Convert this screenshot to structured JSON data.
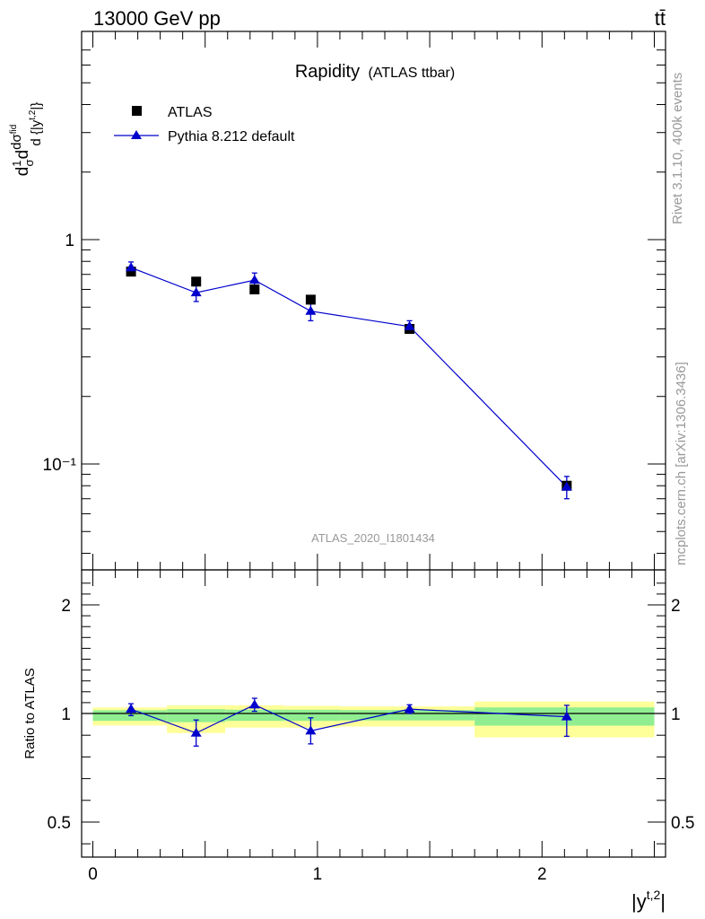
{
  "header": {
    "energy_label": "13000 GeV pp",
    "process_label": "tt̄"
  },
  "side_labels": {
    "rivet": "Rivet 3.1.10,  400k events",
    "mcplots": "mcplots.cern.ch [arXiv:1306.3436]"
  },
  "chart_data": [
    {
      "type": "scatter",
      "title": "Rapidity",
      "subtitle": "(ATLAS ttbar)",
      "watermark": "ATLAS_2020_I1801434",
      "ylabel": "d(1/σ)dσ^{fid}/d{|y^{t,2}|}",
      "xlabel": "|y^{t,2}|",
      "yscale": "log",
      "xlim": [
        -0.05,
        2.55
      ],
      "ylim": [
        0.033,
        7.5
      ],
      "y_tick_labels": [
        "10⁻¹",
        "1"
      ],
      "x_tick_labels": [
        "0",
        "1",
        "2"
      ],
      "legend": {
        "placement": "top-left",
        "entries": [
          "ATLAS",
          "Pythia 8.212 default"
        ]
      },
      "series": [
        {
          "name": "ATLAS",
          "marker": "square",
          "color": "#000000",
          "x": [
            0.17,
            0.46,
            0.72,
            0.97,
            1.41,
            2.11
          ],
          "y": [
            0.72,
            0.65,
            0.6,
            0.54,
            0.4,
            0.08
          ]
        },
        {
          "name": "Pythia 8.212 default",
          "marker": "triangle",
          "color": "#0000cc",
          "x": [
            0.17,
            0.46,
            0.72,
            0.97,
            1.41,
            2.11
          ],
          "y": [
            0.75,
            0.58,
            0.66,
            0.48,
            0.41,
            0.079
          ],
          "err_low": [
            0.045,
            0.05,
            0.05,
            0.045,
            0.025,
            0.009
          ],
          "err_high": [
            0.045,
            0.05,
            0.05,
            0.045,
            0.025,
            0.009
          ]
        }
      ]
    },
    {
      "type": "scatter",
      "ylabel": "Ratio to ATLAS",
      "xlabel": "|y^{t,2}|",
      "xlim": [
        -0.05,
        2.55
      ],
      "ylim": [
        0.35,
        2.3
      ],
      "y_tick_labels": [
        "0.5",
        "1",
        "2"
      ],
      "x_tick_labels": [
        "0",
        "1",
        "2"
      ],
      "reference_line": 1.0,
      "bands": [
        {
          "x0": 0.0,
          "x1": 0.33,
          "inner_lo": 0.966,
          "inner_hi": 1.03,
          "outer_lo": 0.945,
          "outer_hi": 1.055
        },
        {
          "x0": 0.33,
          "x1": 0.59,
          "inner_lo": 0.96,
          "inner_hi": 1.04,
          "outer_lo": 0.91,
          "outer_hi": 1.075
        },
        {
          "x0": 0.59,
          "x1": 0.85,
          "inner_lo": 0.966,
          "inner_hi": 1.035,
          "outer_lo": 0.935,
          "outer_hi": 1.075
        },
        {
          "x0": 0.85,
          "x1": 1.1,
          "inner_lo": 0.966,
          "inner_hi": 1.035,
          "outer_lo": 0.935,
          "outer_hi": 1.07
        },
        {
          "x0": 1.1,
          "x1": 1.7,
          "inner_lo": 0.968,
          "inner_hi": 1.032,
          "outer_lo": 0.94,
          "outer_hi": 1.065
        },
        {
          "x0": 1.7,
          "x1": 2.5,
          "inner_lo": 0.944,
          "inner_hi": 1.056,
          "outer_lo": 0.89,
          "outer_hi": 1.11
        }
      ],
      "series": [
        {
          "name": "Pythia 8.212 default",
          "marker": "triangle",
          "color": "#0000cc",
          "x": [
            0.17,
            0.46,
            0.72,
            0.97,
            1.41,
            2.11
          ],
          "y": [
            1.04,
            0.91,
            1.08,
            0.92,
            1.04,
            0.985
          ],
          "err_low": [
            0.05,
            0.06,
            0.06,
            0.06,
            0.04,
            0.09
          ],
          "err_high": [
            0.05,
            0.06,
            0.06,
            0.06,
            0.04,
            0.09
          ]
        }
      ]
    }
  ],
  "colors": {
    "band_inner": "#90ee90",
    "band_outer": "#ffff99",
    "data": "#000000",
    "mc": "#0000cc"
  }
}
